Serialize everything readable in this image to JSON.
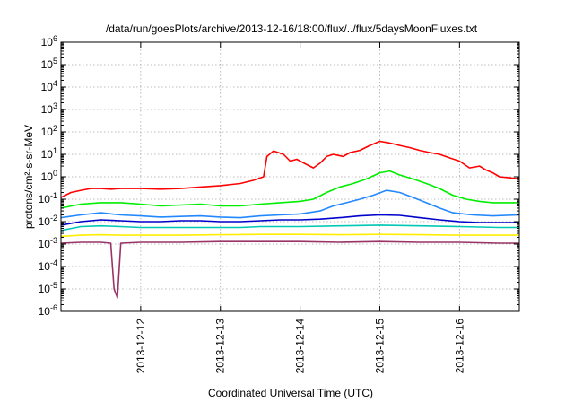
{
  "chart_data": {
    "type": "line",
    "title": "/data/run/goesPlots/archive/2013-12-16/18:00/flux/../flux/5daysMoonFluxes.txt",
    "xlabel": "Coordinated Universal Time (UTC)",
    "ylabel": "protons/cm²-s-sr-MeV",
    "yscale": "log",
    "ylim": [
      1e-06,
      1000000.0
    ],
    "yticks": [
      {
        "exp": -6,
        "label": "10",
        "sup": "-6"
      },
      {
        "exp": -5,
        "label": "10",
        "sup": "-5"
      },
      {
        "exp": -4,
        "label": "10",
        "sup": "-4"
      },
      {
        "exp": -3,
        "label": "10",
        "sup": "-3"
      },
      {
        "exp": -2,
        "label": "10",
        "sup": "-2"
      },
      {
        "exp": -1,
        "label": "10",
        "sup": "-1"
      },
      {
        "exp": 0,
        "label": "10",
        "sup": "0"
      },
      {
        "exp": 1,
        "label": "10",
        "sup": "1"
      },
      {
        "exp": 2,
        "label": "10",
        "sup": "2"
      },
      {
        "exp": 3,
        "label": "10",
        "sup": "3"
      },
      {
        "exp": 4,
        "label": "10",
        "sup": "4"
      },
      {
        "exp": 5,
        "label": "10",
        "sup": "5"
      },
      {
        "exp": 6,
        "label": "10",
        "sup": "6"
      }
    ],
    "xlim": [
      "2013-12-11 00:00",
      "2013-12-16 18:00"
    ],
    "xticks": [
      "2013-12-12",
      "2013-12-13",
      "2013-12-14",
      "2013-12-15",
      "2013-12-16"
    ],
    "grid": true,
    "legend": "none",
    "series": [
      {
        "color": "#ff0000",
        "points": [
          [
            "2013-12-11 00:00",
            0.12
          ],
          [
            "2013-12-11 03:00",
            0.2
          ],
          [
            "2013-12-11 06:00",
            0.25
          ],
          [
            "2013-12-11 09:00",
            0.3
          ],
          [
            "2013-12-11 12:00",
            0.3
          ],
          [
            "2013-12-11 15:00",
            0.28
          ],
          [
            "2013-12-11 18:00",
            0.3
          ],
          [
            "2013-12-12 00:00",
            0.3
          ],
          [
            "2013-12-12 06:00",
            0.28
          ],
          [
            "2013-12-12 12:00",
            0.3
          ],
          [
            "2013-12-12 18:00",
            0.35
          ],
          [
            "2013-12-13 00:00",
            0.4
          ],
          [
            "2013-12-13 06:00",
            0.5
          ],
          [
            "2013-12-13 10:00",
            0.7
          ],
          [
            "2013-12-13 13:00",
            1.0
          ],
          [
            "2013-12-13 14:00",
            8
          ],
          [
            "2013-12-13 16:00",
            14
          ],
          [
            "2013-12-13 19:00",
            10
          ],
          [
            "2013-12-13 21:00",
            5
          ],
          [
            "2013-12-13 23:00",
            6
          ],
          [
            "2013-12-14 02:00",
            3.5
          ],
          [
            "2013-12-14 04:00",
            2.5
          ],
          [
            "2013-12-14 06:00",
            4
          ],
          [
            "2013-12-14 08:00",
            8
          ],
          [
            "2013-12-14 10:00",
            10
          ],
          [
            "2013-12-14 13:00",
            8
          ],
          [
            "2013-12-14 15:00",
            12
          ],
          [
            "2013-12-14 18:00",
            15
          ],
          [
            "2013-12-14 21:00",
            25
          ],
          [
            "2013-12-15 00:00",
            38
          ],
          [
            "2013-12-15 03:00",
            32
          ],
          [
            "2013-12-15 06:00",
            25
          ],
          [
            "2013-12-15 09:00",
            20
          ],
          [
            "2013-12-15 12:00",
            15
          ],
          [
            "2013-12-15 15:00",
            12
          ],
          [
            "2013-12-15 18:00",
            10
          ],
          [
            "2013-12-15 21:00",
            7
          ],
          [
            "2013-12-16 00:00",
            5
          ],
          [
            "2013-12-16 03:00",
            2.5
          ],
          [
            "2013-12-16 06:00",
            3
          ],
          [
            "2013-12-16 08:00",
            2
          ],
          [
            "2013-12-16 10:00",
            1.5
          ],
          [
            "2013-12-16 12:00",
            1.0
          ],
          [
            "2013-12-16 15:00",
            0.9
          ],
          [
            "2013-12-16 18:00",
            0.8
          ]
        ]
      },
      {
        "color": "#00ee00",
        "points": [
          [
            "2013-12-11 00:00",
            0.04
          ],
          [
            "2013-12-11 06:00",
            0.06
          ],
          [
            "2013-12-11 12:00",
            0.07
          ],
          [
            "2013-12-11 18:00",
            0.07
          ],
          [
            "2013-12-12 00:00",
            0.06
          ],
          [
            "2013-12-12 06:00",
            0.05
          ],
          [
            "2013-12-12 12:00",
            0.055
          ],
          [
            "2013-12-12 18:00",
            0.06
          ],
          [
            "2013-12-13 00:00",
            0.05
          ],
          [
            "2013-12-13 06:00",
            0.05
          ],
          [
            "2013-12-13 12:00",
            0.06
          ],
          [
            "2013-12-13 18:00",
            0.07
          ],
          [
            "2013-12-14 00:00",
            0.08
          ],
          [
            "2013-12-14 04:00",
            0.1
          ],
          [
            "2013-12-14 08:00",
            0.2
          ],
          [
            "2013-12-14 12:00",
            0.35
          ],
          [
            "2013-12-14 16:00",
            0.5
          ],
          [
            "2013-12-14 20:00",
            0.8
          ],
          [
            "2013-12-15 00:00",
            1.5
          ],
          [
            "2013-12-15 03:00",
            1.8
          ],
          [
            "2013-12-15 06:00",
            1.2
          ],
          [
            "2013-12-15 10:00",
            0.8
          ],
          [
            "2013-12-15 14:00",
            0.5
          ],
          [
            "2013-12-15 18:00",
            0.3
          ],
          [
            "2013-12-15 22:00",
            0.15
          ],
          [
            "2013-12-16 02:00",
            0.1
          ],
          [
            "2013-12-16 06:00",
            0.08
          ],
          [
            "2013-12-16 10:00",
            0.07
          ],
          [
            "2013-12-16 14:00",
            0.07
          ],
          [
            "2013-12-16 18:00",
            0.07
          ]
        ]
      },
      {
        "color": "#2288ff",
        "points": [
          [
            "2013-12-11 00:00",
            0.015
          ],
          [
            "2013-12-11 06:00",
            0.02
          ],
          [
            "2013-12-11 12:00",
            0.025
          ],
          [
            "2013-12-11 18:00",
            0.02
          ],
          [
            "2013-12-12 00:00",
            0.018
          ],
          [
            "2013-12-12 06:00",
            0.016
          ],
          [
            "2013-12-12 12:00",
            0.017
          ],
          [
            "2013-12-12 18:00",
            0.018
          ],
          [
            "2013-12-13 00:00",
            0.016
          ],
          [
            "2013-12-13 06:00",
            0.015
          ],
          [
            "2013-12-13 12:00",
            0.018
          ],
          [
            "2013-12-13 18:00",
            0.02
          ],
          [
            "2013-12-14 00:00",
            0.022
          ],
          [
            "2013-12-14 06:00",
            0.03
          ],
          [
            "2013-12-14 10:00",
            0.05
          ],
          [
            "2013-12-14 14:00",
            0.07
          ],
          [
            "2013-12-14 18:00",
            0.1
          ],
          [
            "2013-12-14 22:00",
            0.15
          ],
          [
            "2013-12-15 02:00",
            0.25
          ],
          [
            "2013-12-15 06:00",
            0.2
          ],
          [
            "2013-12-15 10:00",
            0.12
          ],
          [
            "2013-12-15 14:00",
            0.07
          ],
          [
            "2013-12-15 18:00",
            0.04
          ],
          [
            "2013-12-15 22:00",
            0.025
          ],
          [
            "2013-12-16 04:00",
            0.02
          ],
          [
            "2013-12-16 10:00",
            0.018
          ],
          [
            "2013-12-16 18:00",
            0.02
          ]
        ]
      },
      {
        "color": "#0000cc",
        "points": [
          [
            "2013-12-11 00:00",
            0.007
          ],
          [
            "2013-12-11 06:00",
            0.01
          ],
          [
            "2013-12-11 12:00",
            0.012
          ],
          [
            "2013-12-11 18:00",
            0.011
          ],
          [
            "2013-12-12 00:00",
            0.01
          ],
          [
            "2013-12-12 06:00",
            0.01
          ],
          [
            "2013-12-12 12:00",
            0.011
          ],
          [
            "2013-12-12 18:00",
            0.011
          ],
          [
            "2013-12-13 00:00",
            0.01
          ],
          [
            "2013-12-13 06:00",
            0.01
          ],
          [
            "2013-12-13 12:00",
            0.011
          ],
          [
            "2013-12-13 18:00",
            0.012
          ],
          [
            "2013-12-14 00:00",
            0.012
          ],
          [
            "2013-12-14 06:00",
            0.013
          ],
          [
            "2013-12-14 12:00",
            0.015
          ],
          [
            "2013-12-14 18:00",
            0.018
          ],
          [
            "2013-12-15 00:00",
            0.02
          ],
          [
            "2013-12-15 06:00",
            0.019
          ],
          [
            "2013-12-15 12:00",
            0.015
          ],
          [
            "2013-12-15 18:00",
            0.012
          ],
          [
            "2013-12-16 00:00",
            0.01
          ],
          [
            "2013-12-16 06:00",
            0.009
          ],
          [
            "2013-12-16 12:00",
            0.009
          ],
          [
            "2013-12-16 18:00",
            0.009
          ]
        ]
      },
      {
        "color": "#00c8b4",
        "points": [
          [
            "2013-12-11 00:00",
            0.004
          ],
          [
            "2013-12-11 06:00",
            0.006
          ],
          [
            "2013-12-11 12:00",
            0.0065
          ],
          [
            "2013-12-11 18:00",
            0.006
          ],
          [
            "2013-12-12 00:00",
            0.0055
          ],
          [
            "2013-12-12 06:00",
            0.0055
          ],
          [
            "2013-12-12 12:00",
            0.0055
          ],
          [
            "2013-12-12 18:00",
            0.0055
          ],
          [
            "2013-12-13 00:00",
            0.0055
          ],
          [
            "2013-12-13 06:00",
            0.0055
          ],
          [
            "2013-12-13 12:00",
            0.006
          ],
          [
            "2013-12-13 18:00",
            0.006
          ],
          [
            "2013-12-14 00:00",
            0.006
          ],
          [
            "2013-12-14 12:00",
            0.0065
          ],
          [
            "2013-12-15 00:00",
            0.007
          ],
          [
            "2013-12-15 12:00",
            0.0065
          ],
          [
            "2013-12-16 00:00",
            0.006
          ],
          [
            "2013-12-16 12:00",
            0.0055
          ],
          [
            "2013-12-16 18:00",
            0.0055
          ]
        ]
      },
      {
        "color": "#ffee00",
        "points": [
          [
            "2013-12-11 00:00",
            0.0022
          ],
          [
            "2013-12-11 06:00",
            0.0025
          ],
          [
            "2013-12-11 12:00",
            0.0026
          ],
          [
            "2013-12-11 18:00",
            0.0025
          ],
          [
            "2013-12-12 00:00",
            0.0025
          ],
          [
            "2013-12-12 12:00",
            0.0025
          ],
          [
            "2013-12-13 00:00",
            0.0026
          ],
          [
            "2013-12-13 12:00",
            0.0027
          ],
          [
            "2013-12-14 00:00",
            0.0027
          ],
          [
            "2013-12-14 12:00",
            0.0026
          ],
          [
            "2013-12-15 00:00",
            0.0027
          ],
          [
            "2013-12-15 12:00",
            0.0026
          ],
          [
            "2013-12-16 00:00",
            0.0025
          ],
          [
            "2013-12-16 12:00",
            0.0025
          ],
          [
            "2013-12-16 18:00",
            0.0025
          ]
        ]
      },
      {
        "color": "#993366",
        "points": [
          [
            "2013-12-11 00:00",
            0.0011
          ],
          [
            "2013-12-11 06:00",
            0.0012
          ],
          [
            "2013-12-11 12:00",
            0.0012
          ],
          [
            "2013-12-11 15:00",
            0.0011
          ],
          [
            "2013-12-11 16:00",
            1e-05
          ],
          [
            "2013-12-11 17:00",
            4e-06
          ],
          [
            "2013-12-11 18:00",
            0.0011
          ],
          [
            "2013-12-12 00:00",
            0.0012
          ],
          [
            "2013-12-12 12:00",
            0.0012
          ],
          [
            "2013-12-13 00:00",
            0.0013
          ],
          [
            "2013-12-13 12:00",
            0.0013
          ],
          [
            "2013-12-14 00:00",
            0.0013
          ],
          [
            "2013-12-14 12:00",
            0.0012
          ],
          [
            "2013-12-15 00:00",
            0.0013
          ],
          [
            "2013-12-15 12:00",
            0.0012
          ],
          [
            "2013-12-16 00:00",
            0.0012
          ],
          [
            "2013-12-16 12:00",
            0.0011
          ],
          [
            "2013-12-16 18:00",
            0.0011
          ]
        ]
      }
    ]
  }
}
